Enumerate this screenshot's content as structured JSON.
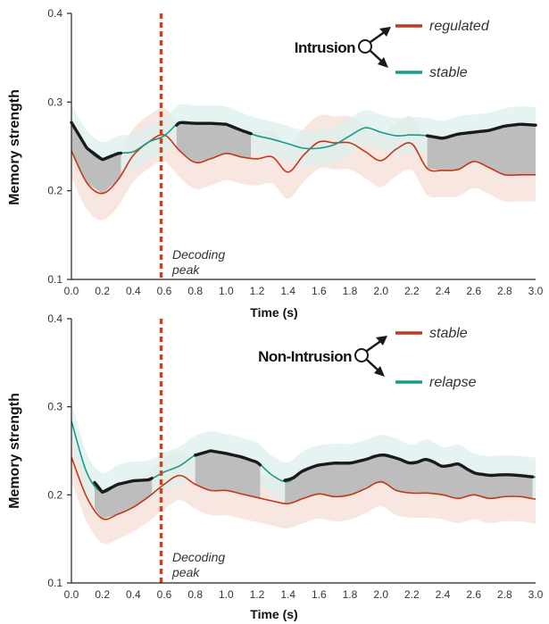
{
  "colors": {
    "red": "#c0391b",
    "teal": "#179a8c",
    "black": "#1a1a1a",
    "peak_line": "#d2401c",
    "grey_fill": "#bdbdbd",
    "red_band": "#f6ddd6",
    "teal_band": "#dcefee"
  },
  "chart_data": [
    {
      "type": "line",
      "legend_title": "Intrusion",
      "xlabel": "Time (s)",
      "ylabel": "Memory strength",
      "xlim": [
        0.0,
        3.0
      ],
      "ylim": [
        0.1,
        0.4
      ],
      "x_ticks": [
        "0.0",
        "0.2",
        "0.4",
        "0.6",
        "0.8",
        "1.0",
        "1.2",
        "1.4",
        "1.6",
        "1.8",
        "2.0",
        "2.2",
        "2.4",
        "2.6",
        "2.8",
        "3.0"
      ],
      "y_ticks": [
        "0.1",
        "0.2",
        "0.3",
        "0.4"
      ],
      "annotation": {
        "text_line1": "Decoding",
        "text_line2": "peak",
        "x": 0.58
      },
      "significant_intervals": [
        [
          0.0,
          0.32
        ],
        [
          0.68,
          1.16
        ],
        [
          2.3,
          3.0
        ]
      ],
      "x": [
        0.0,
        0.1,
        0.2,
        0.3,
        0.4,
        0.5,
        0.6,
        0.7,
        0.8,
        0.9,
        1.0,
        1.1,
        1.2,
        1.3,
        1.4,
        1.5,
        1.6,
        1.7,
        1.8,
        1.9,
        2.0,
        2.1,
        2.2,
        2.3,
        2.4,
        2.5,
        2.6,
        2.7,
        2.8,
        2.9,
        3.0
      ],
      "series": [
        {
          "name": "regulated",
          "color": "#c0391b",
          "band": 0.03,
          "values": [
            0.245,
            0.209,
            0.197,
            0.212,
            0.24,
            0.255,
            0.263,
            0.245,
            0.232,
            0.236,
            0.242,
            0.238,
            0.236,
            0.238,
            0.221,
            0.24,
            0.255,
            0.254,
            0.254,
            0.244,
            0.234,
            0.247,
            0.253,
            0.225,
            0.223,
            0.224,
            0.233,
            0.226,
            0.218,
            0.218,
            0.218
          ]
        },
        {
          "name": "stable",
          "color": "#179a8c",
          "band": 0.02,
          "values": [
            0.277,
            0.248,
            0.235,
            0.242,
            0.244,
            0.255,
            0.262,
            0.277,
            0.276,
            0.276,
            0.275,
            0.268,
            0.262,
            0.258,
            0.253,
            0.248,
            0.248,
            0.252,
            0.262,
            0.271,
            0.266,
            0.262,
            0.263,
            0.262,
            0.259,
            0.264,
            0.266,
            0.268,
            0.273,
            0.275,
            0.274
          ]
        }
      ]
    },
    {
      "type": "line",
      "legend_title": "Non-Intrusion",
      "xlabel": "Time (s)",
      "ylabel": "Memory strength",
      "xlim": [
        0.0,
        3.0
      ],
      "ylim": [
        0.1,
        0.4
      ],
      "x_ticks": [
        "0.0",
        "0.2",
        "0.4",
        "0.6",
        "0.8",
        "1.0",
        "1.2",
        "1.4",
        "1.6",
        "1.8",
        "2.0",
        "2.2",
        "2.4",
        "2.6",
        "2.8",
        "3.0"
      ],
      "y_ticks": [
        "0.1",
        "0.2",
        "0.3",
        "0.4"
      ],
      "annotation": {
        "text_line1": "Decoding",
        "text_line2": "peak",
        "x": 0.58
      },
      "significant_intervals": [
        [
          0.15,
          0.52
        ],
        [
          0.8,
          1.22
        ],
        [
          1.38,
          2.98
        ]
      ],
      "x": [
        0.0,
        0.1,
        0.2,
        0.3,
        0.4,
        0.5,
        0.6,
        0.7,
        0.8,
        0.9,
        1.0,
        1.1,
        1.2,
        1.3,
        1.4,
        1.5,
        1.6,
        1.7,
        1.8,
        1.9,
        2.0,
        2.1,
        2.2,
        2.3,
        2.4,
        2.5,
        2.6,
        2.7,
        2.8,
        2.9,
        3.0
      ],
      "series": [
        {
          "name": "stable",
          "color": "#c0391b",
          "band": 0.028,
          "values": [
            0.243,
            0.197,
            0.173,
            0.178,
            0.186,
            0.198,
            0.212,
            0.222,
            0.212,
            0.205,
            0.205,
            0.201,
            0.197,
            0.193,
            0.19,
            0.196,
            0.201,
            0.198,
            0.2,
            0.207,
            0.215,
            0.205,
            0.202,
            0.202,
            0.2,
            0.196,
            0.2,
            0.196,
            0.198,
            0.198,
            0.195
          ]
        },
        {
          "name": "relapse",
          "color": "#179a8c",
          "band": 0.022,
          "values": [
            0.284,
            0.225,
            0.203,
            0.212,
            0.216,
            0.217,
            0.226,
            0.233,
            0.245,
            0.25,
            0.247,
            0.243,
            0.237,
            0.222,
            0.215,
            0.228,
            0.234,
            0.236,
            0.236,
            0.24,
            0.246,
            0.242,
            0.235,
            0.241,
            0.232,
            0.235,
            0.225,
            0.222,
            0.223,
            0.222,
            0.22
          ]
        }
      ]
    }
  ]
}
